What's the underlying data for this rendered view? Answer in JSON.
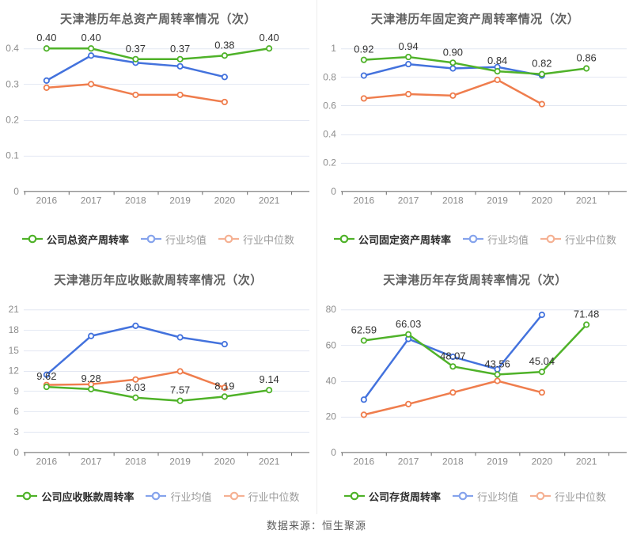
{
  "source_note": "数据来源：恒生聚源",
  "colors": {
    "company": "#4fb229",
    "industry_mean": "#4372dd",
    "industry_median": "#ef7d4d",
    "legend_mean": "#85a3ec",
    "legend_median": "#f5b193",
    "grid": "#e2e7f2",
    "axis": "#666666",
    "tick_label": "#8c8c8c",
    "data_label": "#333333"
  },
  "chart_data": [
    {
      "type": "line",
      "title": "天津港历年总资产周转率情况（次）",
      "categories": [
        "2016",
        "2017",
        "2018",
        "2019",
        "2020",
        "2021"
      ],
      "xlabel": "",
      "ylabel": "",
      "ylim": [
        0,
        0.4
      ],
      "yticks": [
        "0",
        "0.1",
        "0.2",
        "0.3",
        "0.4"
      ],
      "grid": true,
      "legend_position": "bottom",
      "series": [
        {
          "name": "公司总资产周转率",
          "role": "company",
          "values": [
            0.4,
            0.4,
            0.37,
            0.37,
            0.38,
            0.4
          ],
          "labels": [
            "0.40",
            "0.40",
            "0.37",
            "0.37",
            "0.38",
            "0.40"
          ]
        },
        {
          "name": "行业均值",
          "role": "industry_mean",
          "values": [
            0.31,
            0.38,
            0.36,
            0.35,
            0.32,
            null
          ]
        },
        {
          "name": "行业中位数",
          "role": "industry_median",
          "values": [
            0.29,
            0.3,
            0.27,
            0.27,
            0.25,
            null
          ]
        }
      ]
    },
    {
      "type": "line",
      "title": "天津港历年固定资产周转率情况（次）",
      "categories": [
        "2016",
        "2017",
        "2018",
        "2019",
        "2020",
        "2021"
      ],
      "xlabel": "",
      "ylabel": "",
      "ylim": [
        0,
        1
      ],
      "yticks": [
        "0",
        "0.2",
        "0.4",
        "0.6",
        "0.8",
        "1"
      ],
      "grid": true,
      "legend_position": "bottom",
      "series": [
        {
          "name": "公司固定资产周转率",
          "role": "company",
          "values": [
            0.92,
            0.94,
            0.9,
            0.84,
            0.82,
            0.86
          ],
          "labels": [
            "0.92",
            "0.94",
            "0.90",
            "0.84",
            "0.82",
            "0.86"
          ]
        },
        {
          "name": "行业均值",
          "role": "industry_mean",
          "values": [
            0.81,
            0.89,
            0.86,
            0.87,
            0.81,
            null
          ]
        },
        {
          "name": "行业中位数",
          "role": "industry_median",
          "values": [
            0.65,
            0.68,
            0.67,
            0.78,
            0.61,
            null
          ]
        }
      ]
    },
    {
      "type": "line",
      "title": "天津港历年应收账款周转率情况（次）",
      "categories": [
        "2016",
        "2017",
        "2018",
        "2019",
        "2020",
        "2021"
      ],
      "xlabel": "",
      "ylabel": "",
      "ylim": [
        0,
        21
      ],
      "yticks": [
        "0",
        "3",
        "6",
        "9",
        "12",
        "15",
        "18",
        "21"
      ],
      "grid": true,
      "legend_position": "bottom",
      "series": [
        {
          "name": "公司应收账款周转率",
          "role": "company",
          "values": [
            9.62,
            9.28,
            8.03,
            7.57,
            8.19,
            9.14
          ],
          "labels": [
            "9.62",
            "9.28",
            "8.03",
            "7.57",
            "8.19",
            "9.14"
          ]
        },
        {
          "name": "行业均值",
          "role": "industry_mean",
          "values": [
            11.4,
            17.1,
            18.6,
            16.9,
            15.9,
            null
          ]
        },
        {
          "name": "行业中位数",
          "role": "industry_median",
          "values": [
            9.9,
            10.0,
            10.7,
            11.9,
            9.5,
            null
          ]
        }
      ]
    },
    {
      "type": "line",
      "title": "天津港历年存货周转率情况（次）",
      "categories": [
        "2016",
        "2017",
        "2018",
        "2019",
        "2020",
        "2021"
      ],
      "xlabel": "",
      "ylabel": "",
      "ylim": [
        0,
        80
      ],
      "yticks": [
        "0",
        "20",
        "40",
        "60",
        "80"
      ],
      "grid": true,
      "legend_position": "bottom",
      "series": [
        {
          "name": "公司存货周转率",
          "role": "company",
          "values": [
            62.59,
            66.03,
            48.07,
            43.56,
            45.04,
            71.48
          ],
          "labels": [
            "62.59",
            "66.03",
            "48.07",
            "43.56",
            "45.04",
            "71.48"
          ]
        },
        {
          "name": "行业均值",
          "role": "industry_mean",
          "values": [
            29.5,
            63.5,
            53.5,
            46.5,
            77.0,
            null
          ]
        },
        {
          "name": "行业中位数",
          "role": "industry_median",
          "values": [
            21.0,
            27.0,
            33.5,
            40.0,
            33.5,
            null
          ]
        }
      ]
    }
  ]
}
